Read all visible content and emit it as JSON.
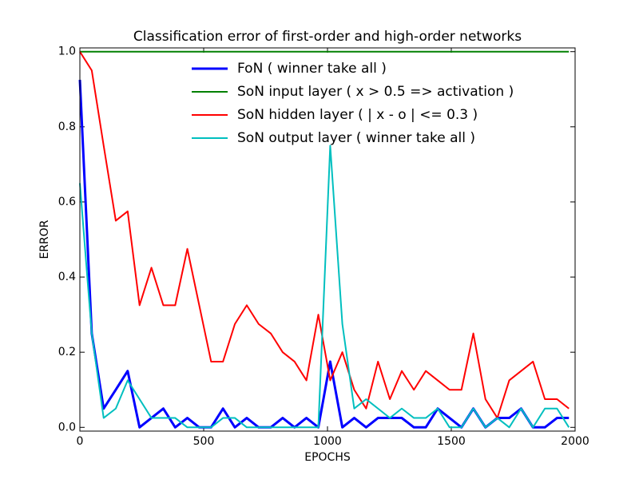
{
  "chart_data": {
    "type": "line",
    "title": "Classification error of first-order and high-order networks",
    "xlabel": "EPOCHS",
    "ylabel": "ERROR",
    "x": [
      0,
      48,
      96,
      145,
      193,
      241,
      289,
      337,
      385,
      434,
      482,
      530,
      578,
      626,
      674,
      722,
      771,
      819,
      867,
      915,
      963,
      1011,
      1060,
      1108,
      1156,
      1204,
      1252,
      1300,
      1349,
      1397,
      1445,
      1493,
      1541,
      1589,
      1638,
      1686,
      1734,
      1782,
      1830,
      1878,
      1927,
      1975
    ],
    "series": [
      {
        "name": "FoN ( winner take all )",
        "color": "#0000ff",
        "width": 3,
        "values": [
          0.925,
          0.25,
          0.05,
          0.1,
          0.15,
          0,
          0.025,
          0.05,
          0,
          0.025,
          0,
          0,
          0.05,
          0,
          0.025,
          0,
          0,
          0.025,
          0,
          0.025,
          0,
          0.175,
          0,
          0.025,
          0,
          0.025,
          0.025,
          0.025,
          0,
          0,
          0.05,
          0.025,
          0,
          0.05,
          0,
          0.025,
          0.025,
          0.05,
          0,
          0,
          0.025,
          0.025
        ]
      },
      {
        "name": "SoN input layer ( x > 0.5 => activation )",
        "color": "#008000",
        "width": 2,
        "values": [
          1,
          1,
          1,
          1,
          1,
          1,
          1,
          1,
          1,
          1,
          1,
          1,
          1,
          1,
          1,
          1,
          1,
          1,
          1,
          1,
          1,
          1,
          1,
          1,
          1,
          1,
          1,
          1,
          1,
          1,
          1,
          1,
          1,
          1,
          1,
          1,
          1,
          1,
          1,
          1,
          1,
          1
        ]
      },
      {
        "name": "SoN hidden layer ( | x - o | <= 0.3 )",
        "color": "#ff0000",
        "width": 2,
        "values": [
          1.0,
          0.95,
          0.75,
          0.55,
          0.575,
          0.325,
          0.425,
          0.325,
          0.325,
          0.475,
          0.325,
          0.175,
          0.175,
          0.275,
          0.325,
          0.275,
          0.25,
          0.2,
          0.175,
          0.125,
          0.3,
          0.125,
          0.2,
          0.1,
          0.05,
          0.175,
          0.075,
          0.15,
          0.1,
          0.15,
          0.125,
          0.1,
          0.1,
          0.25,
          0.075,
          0.025,
          0.125,
          0.15,
          0.175,
          0.075,
          0.075,
          0.05
        ]
      },
      {
        "name": "SoN output layer ( winner take all )",
        "color": "#00bfbf",
        "width": 2,
        "values": [
          0.65,
          0.25,
          0.025,
          0.05,
          0.125,
          0.075,
          0.025,
          0.025,
          0.025,
          0,
          0,
          0,
          0.025,
          0.025,
          0,
          0,
          0,
          0,
          0,
          0,
          0,
          0.75,
          0.275,
          0.05,
          0.075,
          0.05,
          0.025,
          0.05,
          0.025,
          0.025,
          0.05,
          0,
          0,
          0.05,
          0,
          0.025,
          0,
          0.05,
          0,
          0.05,
          0.05,
          0
        ]
      }
    ],
    "xlim": [
      0,
      2000
    ],
    "xticks": [
      0,
      500,
      1000,
      1500,
      2000
    ],
    "ylim": [
      -0.01,
      1.01
    ],
    "yticks": [
      {
        "value": 0,
        "label": "0.0"
      },
      0.2,
      0.4,
      0.6,
      0.8,
      {
        "value": 1,
        "label": "1.0"
      }
    ],
    "legend": "upper center",
    "grid": false
  }
}
